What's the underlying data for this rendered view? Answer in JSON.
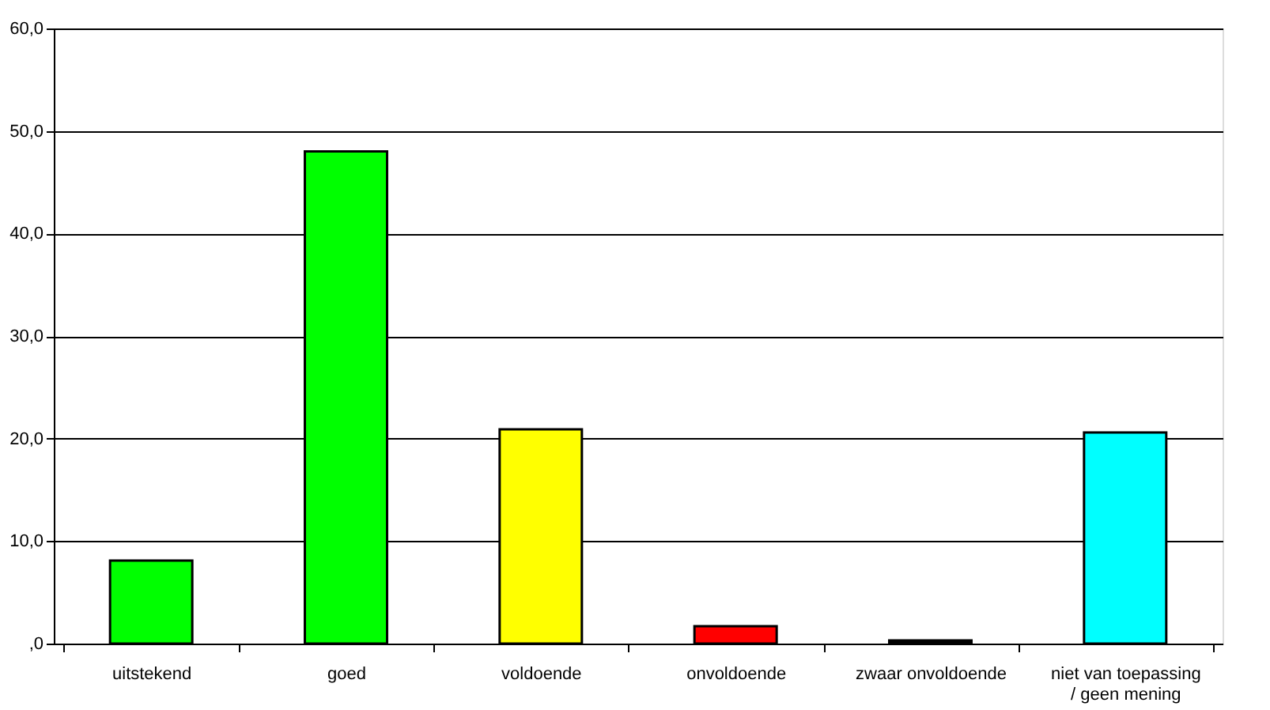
{
  "chart_data": {
    "type": "bar",
    "categories": [
      "uitstekend",
      "goed",
      "voldoende",
      "onvoldoende",
      "zwaar onvoldoende",
      "niet van toepassing / geen mening"
    ],
    "values": [
      8.1,
      48.0,
      20.9,
      1.7,
      0.3,
      20.6
    ],
    "colors": [
      "#00ff00",
      "#00ff00",
      "#ffff00",
      "#ff0000",
      "#000000",
      "#00ffff"
    ],
    "ylim": [
      0,
      60
    ],
    "yticks": [
      {
        "value": 0,
        "label": ",0"
      },
      {
        "value": 10,
        "label": "10,0"
      },
      {
        "value": 20,
        "label": "20,0"
      },
      {
        "value": 30,
        "label": "30,0"
      },
      {
        "value": 40,
        "label": "40,0"
      },
      {
        "value": 50,
        "label": "50,0"
      },
      {
        "value": 60,
        "label": "60,0"
      }
    ],
    "grid": "y"
  }
}
